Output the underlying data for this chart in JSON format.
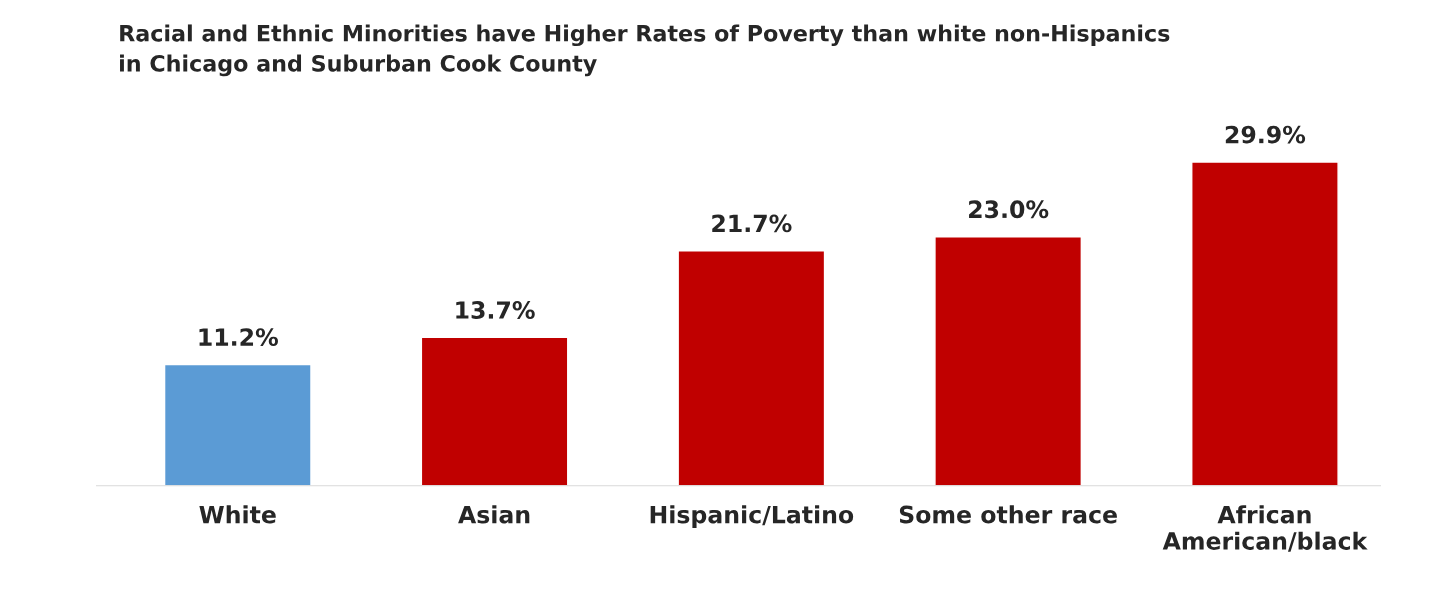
{
  "chart_data": {
    "type": "bar",
    "title": "Racial and Ethnic Minorities have Higher Rates of Poverty than white non-Hispanics\nin Chicago and Suburban Cook County",
    "categories": [
      "White",
      "Asian",
      "Hispanic/Latino",
      "Some other race",
      "African\nAmerican/black"
    ],
    "values": [
      11.2,
      13.7,
      21.7,
      23.0,
      29.9
    ],
    "colors": [
      "#5b9bd5",
      "#c00000",
      "#c00000",
      "#c00000",
      "#c00000"
    ],
    "value_labels": [
      "11.2%",
      "13.7%",
      "21.7%",
      "23.0%",
      "29.9%"
    ],
    "grid": false,
    "legend": false
  }
}
